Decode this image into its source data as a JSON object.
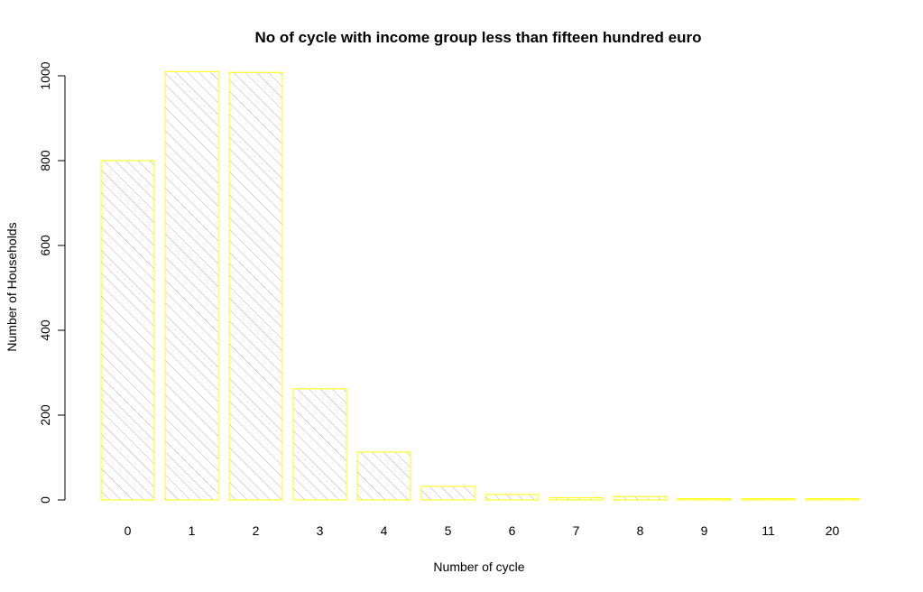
{
  "chart_data": {
    "type": "bar",
    "title": "No of cycle with income group less than fifteen hundred euro",
    "xlabel": "Number of cycle",
    "ylabel": "Number of Households",
    "categories": [
      "0",
      "1",
      "2",
      "3",
      "4",
      "5",
      "6",
      "7",
      "8",
      "9",
      "11",
      "20"
    ],
    "values": [
      800,
      1010,
      1008,
      262,
      113,
      32,
      13,
      5,
      8,
      3,
      3,
      3
    ],
    "ylim": [
      0,
      1000
    ],
    "yticks": [
      0,
      200,
      400,
      600,
      800,
      1000
    ],
    "grid": false,
    "legend": "none",
    "bar_fill": "hatched grey diagonal",
    "colors": {
      "bar_border": "#ffff00",
      "hatch": "#b0b0b0",
      "axis": "#000000"
    }
  }
}
